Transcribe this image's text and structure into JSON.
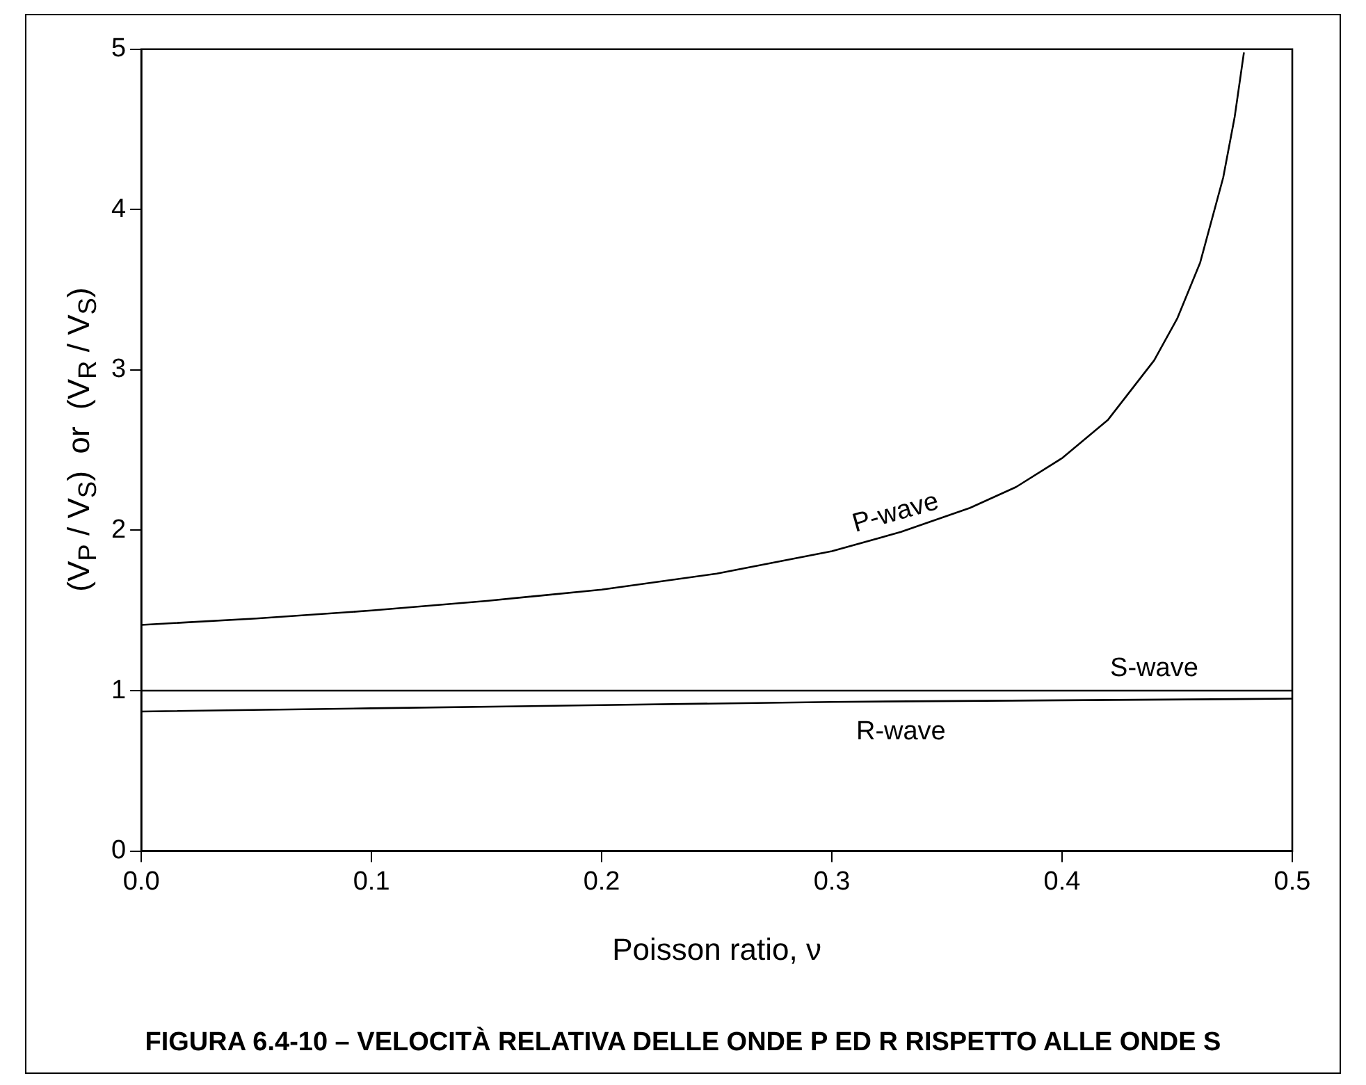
{
  "chart_data": {
    "type": "line",
    "xlabel": "Poisson ratio, ν",
    "ylabel": "(V$_{P}$ / V$_{S}$)  or  (V$_{R}$ / V$_{S}$)",
    "annotations": [
      "FIGURA 6.4-10 – VELOCITÀ RELATIVA DELLE ONDE P ED R RISPETTO ALLE ONDE S"
    ],
    "xlim": [
      0,
      0.5
    ],
    "ylim": [
      0,
      5
    ],
    "xticks": [
      {
        "value": 0,
        "label": "0.0"
      },
      {
        "value": 0.1,
        "label": "0.1"
      },
      {
        "value": 0.2,
        "label": "0.2"
      },
      {
        "value": 0.3,
        "label": "0.3"
      },
      {
        "value": 0.4,
        "label": "0.4"
      },
      {
        "value": 0.5,
        "label": "0.5"
      }
    ],
    "yticks": [
      0,
      1,
      2,
      3,
      4,
      5
    ],
    "grid": false,
    "legend": false,
    "marker": "none",
    "line_style": "solid",
    "series": [
      {
        "name": "P-wave",
        "color": "#000000",
        "x": [
          0,
          0.05,
          0.1,
          0.15,
          0.2,
          0.25,
          0.3,
          0.33,
          0.36,
          0.38,
          0.4,
          0.42,
          0.44,
          0.45,
          0.46,
          0.47,
          0.475,
          0.479
        ],
        "values": [
          1.41,
          1.45,
          1.5,
          1.56,
          1.63,
          1.73,
          1.87,
          1.99,
          2.14,
          2.27,
          2.45,
          2.69,
          3.06,
          3.32,
          3.67,
          4.2,
          4.58,
          4.98
        ]
      },
      {
        "name": "S-wave",
        "color": "#000000",
        "x": [
          0,
          0.5
        ],
        "values": [
          1,
          1
        ]
      },
      {
        "name": "R-wave",
        "color": "#000000",
        "x": [
          0,
          0.1,
          0.2,
          0.3,
          0.4,
          0.5
        ],
        "values": [
          0.87,
          0.89,
          0.91,
          0.93,
          0.94,
          0.95
        ]
      }
    ]
  }
}
